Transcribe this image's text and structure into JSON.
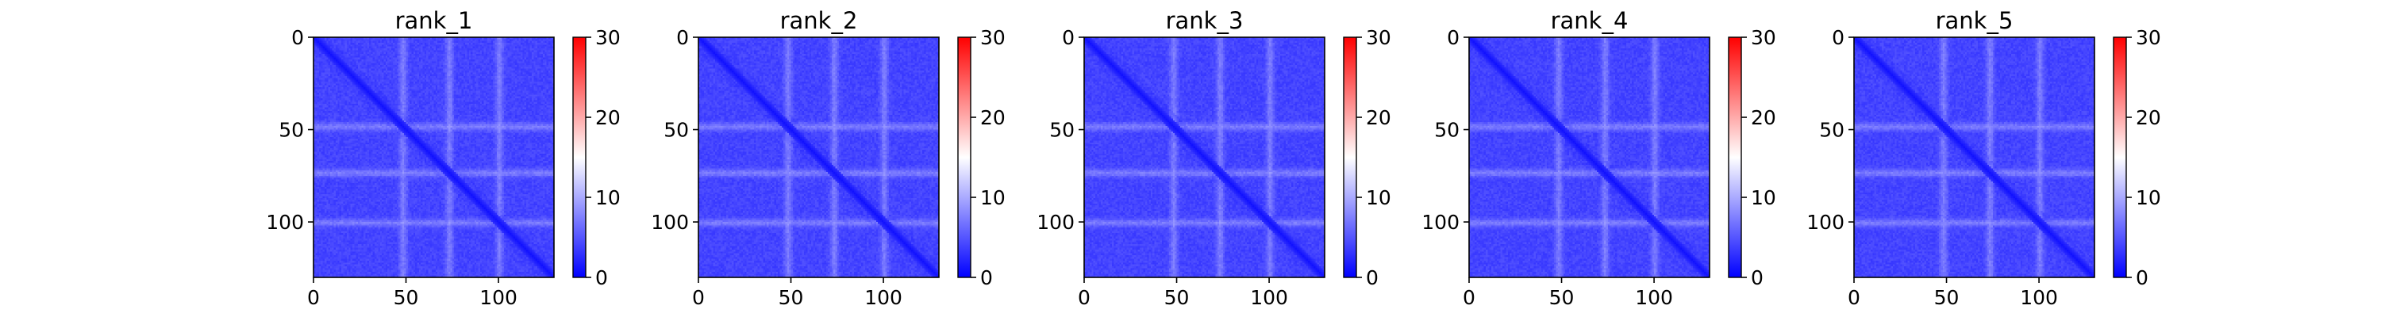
{
  "chart_data": [
    {
      "type": "heatmap",
      "title": "rank_1",
      "xlabel": "",
      "ylabel": "",
      "xlim": [
        0,
        130
      ],
      "ylim": [
        130,
        0
      ],
      "xticks": [
        0,
        50,
        100
      ],
      "yticks": [
        0,
        50,
        100
      ],
      "colorbar": {
        "ticks": [
          0,
          10,
          20,
          30
        ],
        "range": [
          0,
          30
        ],
        "cmap": "bwr"
      },
      "bright_rows": [
        48,
        73,
        100
      ],
      "bright_cols": [
        48,
        73,
        100
      ],
      "diagonal": "low (blue)",
      "background_value": 4
    },
    {
      "type": "heatmap",
      "title": "rank_2",
      "xlabel": "",
      "ylabel": "",
      "xlim": [
        0,
        130
      ],
      "ylim": [
        130,
        0
      ],
      "xticks": [
        0,
        50,
        100
      ],
      "yticks": [
        0,
        50,
        100
      ],
      "colorbar": {
        "ticks": [
          0,
          10,
          20,
          30
        ],
        "range": [
          0,
          30
        ],
        "cmap": "bwr"
      },
      "bright_rows": [
        48,
        73,
        100
      ],
      "bright_cols": [
        48,
        73,
        100
      ],
      "diagonal": "low (blue)",
      "background_value": 4
    },
    {
      "type": "heatmap",
      "title": "rank_3",
      "xlabel": "",
      "ylabel": "",
      "xlim": [
        0,
        130
      ],
      "ylim": [
        130,
        0
      ],
      "xticks": [
        0,
        50,
        100
      ],
      "yticks": [
        0,
        50,
        100
      ],
      "colorbar": {
        "ticks": [
          0,
          10,
          20,
          30
        ],
        "range": [
          0,
          30
        ],
        "cmap": "bwr"
      },
      "bright_rows": [
        48,
        73,
        100
      ],
      "bright_cols": [
        48,
        73,
        100
      ],
      "diagonal": "low (blue)",
      "background_value": 4
    },
    {
      "type": "heatmap",
      "title": "rank_4",
      "xlabel": "",
      "ylabel": "",
      "xlim": [
        0,
        130
      ],
      "ylim": [
        130,
        0
      ],
      "xticks": [
        0,
        50,
        100
      ],
      "yticks": [
        0,
        50,
        100
      ],
      "colorbar": {
        "ticks": [
          0,
          10,
          20,
          30
        ],
        "range": [
          0,
          30
        ],
        "cmap": "bwr"
      },
      "bright_rows": [
        48,
        73,
        100
      ],
      "bright_cols": [
        48,
        73,
        100
      ],
      "diagonal": "low (blue)",
      "background_value": 4
    },
    {
      "type": "heatmap",
      "title": "rank_5",
      "xlabel": "",
      "ylabel": "",
      "xlim": [
        0,
        130
      ],
      "ylim": [
        130,
        0
      ],
      "xticks": [
        0,
        50,
        100
      ],
      "yticks": [
        0,
        50,
        100
      ],
      "colorbar": {
        "ticks": [
          0,
          10,
          20,
          30
        ],
        "range": [
          0,
          30
        ],
        "cmap": "bwr"
      },
      "bright_rows": [
        48,
        73,
        100
      ],
      "bright_cols": [
        48,
        73,
        100
      ],
      "diagonal": "low (blue)",
      "background_value": 4
    }
  ]
}
